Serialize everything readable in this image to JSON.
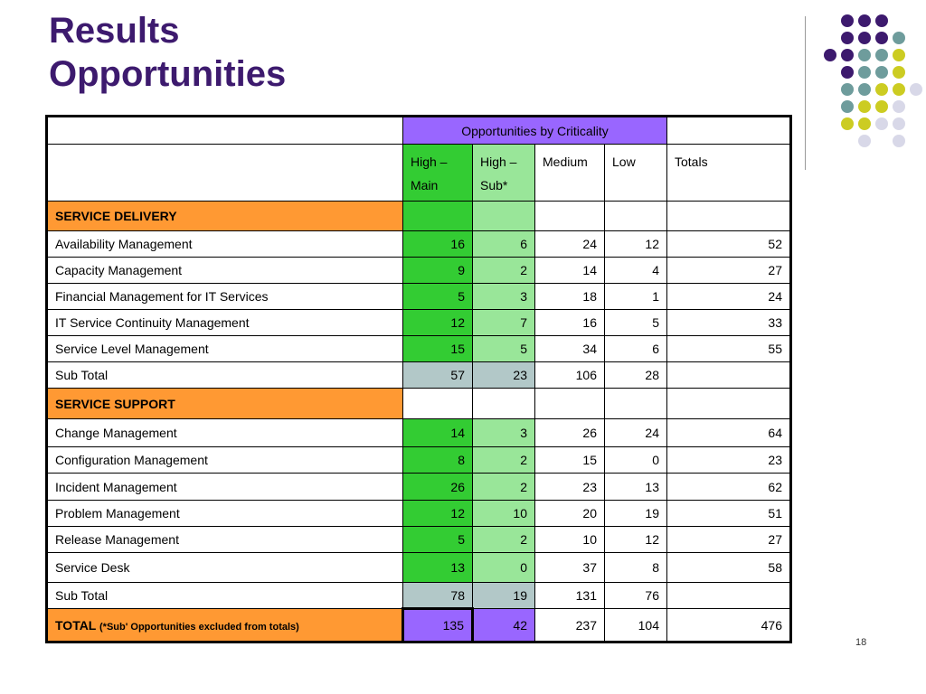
{
  "title_line1": "Results",
  "title_line2": "Opportunities",
  "header": {
    "group": "Opportunities by Criticality",
    "cols": [
      "High –\nMain",
      "High –\nSub*",
      "Medium",
      "Low",
      "Totals"
    ]
  },
  "sections": [
    {
      "name": "SERVICE DELIVERY",
      "rows": [
        {
          "label": "Availability Management",
          "v": [
            "16",
            "6",
            "24",
            "12",
            "52"
          ]
        },
        {
          "label": "Capacity Management",
          "v": [
            "9",
            "2",
            "14",
            "4",
            "27"
          ]
        },
        {
          "label": "Financial Management for IT Services",
          "v": [
            "5",
            "3",
            "18",
            "1",
            "24"
          ]
        },
        {
          "label": "IT Service Continuity Management",
          "v": [
            "12",
            "7",
            "16",
            "5",
            "33"
          ]
        },
        {
          "label": "Service Level Management",
          "v": [
            "15",
            "5",
            "34",
            "6",
            "55"
          ]
        }
      ],
      "subtotal": {
        "label": "Sub Total",
        "v": [
          "57",
          "23",
          "106",
          "28",
          ""
        ]
      }
    },
    {
      "name": "SERVICE SUPPORT",
      "rows": [
        {
          "label": "Change Management",
          "v": [
            "14",
            "3",
            "26",
            "24",
            "64"
          ]
        },
        {
          "label": "Configuration Management",
          "v": [
            "8",
            "2",
            "15",
            "0",
            "23"
          ]
        },
        {
          "label": "Incident Management",
          "v": [
            "26",
            "2",
            "23",
            "13",
            "62"
          ]
        },
        {
          "label": "Problem Management",
          "v": [
            "12",
            "10",
            "20",
            "19",
            "51"
          ]
        },
        {
          "label": "Release Management",
          "v": [
            "5",
            "2",
            "10",
            "12",
            "27"
          ]
        },
        {
          "label": "Service Desk",
          "v": [
            "13",
            "0",
            "37",
            "8",
            "58"
          ]
        }
      ],
      "subtotal": {
        "label": "Sub Total",
        "v": [
          "78",
          "19",
          "131",
          "76",
          ""
        ]
      }
    }
  ],
  "total": {
    "label": "TOTAL",
    "note": "(*Sub' Opportunities excluded from totals)",
    "v": [
      "135",
      "42",
      "237",
      "104",
      "476"
    ]
  },
  "page_number": "18",
  "colors": {
    "title": "#3d1a6e",
    "section": "#ff9933",
    "high_main": "#33cc33",
    "high_sub": "#99e699",
    "subtotal": "#b2c8c8",
    "criticality": "#9966ff",
    "dot_purple": "#3d1a6e",
    "dot_teal": "#6e9c9c",
    "dot_yellow": "#cccc22",
    "dot_lavender": "#d8d8e8"
  }
}
